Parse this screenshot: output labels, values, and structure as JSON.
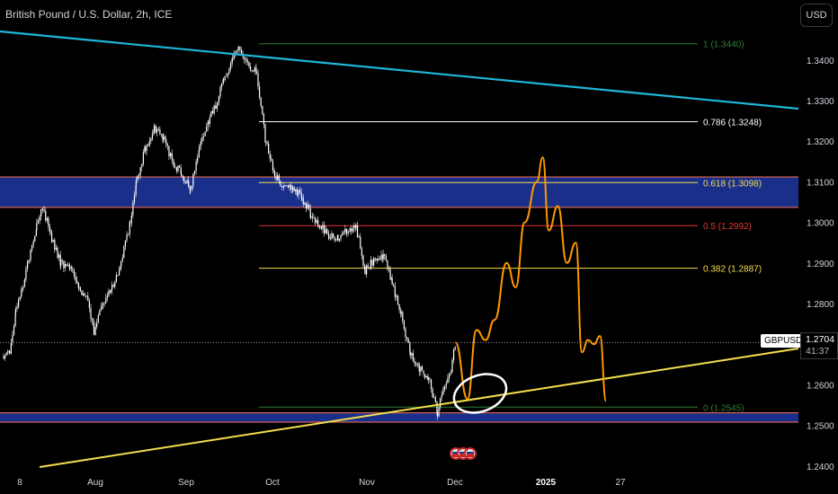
{
  "header": {
    "title": "British Pound / U.S. Dollar, 2h, ICE"
  },
  "toolbar": {
    "currency": "USD"
  },
  "last_price": {
    "symbol": "GBPUSD",
    "price": "1.2704",
    "countdown": "41:37"
  },
  "colors": {
    "background": "#000000",
    "candle": "#ffffff",
    "blue_trendline": "#1fb6d8",
    "yellow_trendline": "#f5df4d",
    "projection": "#ff9800",
    "zone_fill": "#1a2f8a",
    "zone_border": "#ff6f4f"
  },
  "chart_data": {
    "type": "candlestick",
    "title": "British Pound / U.S. Dollar, 2h, ICE",
    "y_axis": {
      "ticks": [
        "1.3400",
        "1.3300",
        "1.3200",
        "1.3100",
        "1.3000",
        "1.2900",
        "1.2800",
        "1.2600",
        "1.2500",
        "1.2400"
      ],
      "range": [
        1.2373,
        1.349
      ]
    },
    "x_axis": {
      "ticks": [
        "8",
        "Aug",
        "Sep",
        "Oct",
        "Nov",
        "Dec",
        "2025",
        "27"
      ]
    },
    "fibonacci": [
      {
        "level": "1",
        "price": 1.344,
        "label": "1 (1.3440)",
        "color": "#2e7d32"
      },
      {
        "level": "0.786",
        "price": 1.3248,
        "label": "0.786 (1.3248)",
        "color": "#ffffff"
      },
      {
        "level": "0.618",
        "price": 1.3098,
        "label": "0.618 (1.3098)",
        "color": "#f5df4d"
      },
      {
        "level": "0.5",
        "price": 1.2992,
        "label": "0.5 (1.2992)",
        "color": "#e53935"
      },
      {
        "level": "0.382",
        "price": 1.2887,
        "label": "0.382 (1.2887)",
        "color": "#f5df4d"
      },
      {
        "level": "0",
        "price": 1.2545,
        "label": "0 (1.2545)",
        "color": "#2e7d32"
      }
    ],
    "zones": [
      {
        "from": 1.3037,
        "to": 1.3112
      },
      {
        "from": 1.2508,
        "to": 1.2531
      }
    ],
    "last_price": 1.2704,
    "price_path": [
      [
        "Jul 1",
        1.267
      ],
      [
        "Jul 3",
        1.268
      ],
      [
        "Jul 5",
        1.278
      ],
      [
        "Jul 7",
        1.283
      ],
      [
        "Jul 9",
        1.29
      ],
      [
        "Jul 12",
        1.299
      ],
      [
        "Jul 14",
        1.304
      ],
      [
        "Jul 17",
        1.296
      ],
      [
        "Jul 20",
        1.29
      ],
      [
        "Jul 23",
        1.289
      ],
      [
        "Jul 26",
        1.284
      ],
      [
        "Jul 29",
        1.281
      ],
      [
        "Jul 31",
        1.273
      ],
      [
        "Aug 3",
        1.28
      ],
      [
        "Aug 6",
        1.284
      ],
      [
        "Aug 9",
        1.29
      ],
      [
        "Aug 12",
        1.3
      ],
      [
        "Aug 14",
        1.31
      ],
      [
        "Aug 17",
        1.318
      ],
      [
        "Aug 20",
        1.323
      ],
      [
        "Aug 23",
        1.321
      ],
      [
        "Aug 26",
        1.315
      ],
      [
        "Aug 29",
        1.312
      ],
      [
        "Sep 1",
        1.308
      ],
      [
        "Sep 4",
        1.318
      ],
      [
        "Sep 7",
        1.325
      ],
      [
        "Sep 10",
        1.33
      ],
      [
        "Sep 12",
        1.335
      ],
      [
        "Sep 15",
        1.34
      ],
      [
        "Sep 17",
        1.343
      ],
      [
        "Sep 20",
        1.339
      ],
      [
        "Sep 23",
        1.337
      ],
      [
        "Sep 26",
        1.32
      ],
      [
        "Sep 29",
        1.312
      ],
      [
        "Oct 2",
        1.308
      ],
      [
        "Oct 5",
        1.309
      ],
      [
        "Oct 8",
        1.306
      ],
      [
        "Oct 11",
        1.302
      ],
      [
        "Oct 14",
        1.299
      ],
      [
        "Oct 17",
        1.297
      ],
      [
        "Oct 20",
        1.296
      ],
      [
        "Oct 23",
        1.298
      ],
      [
        "Oct 26",
        1.299
      ],
      [
        "Oct 29",
        1.288
      ],
      [
        "Nov 1",
        1.291
      ],
      [
        "Nov 4",
        1.292
      ],
      [
        "Nov 7",
        1.285
      ],
      [
        "Nov 10",
        1.277
      ],
      [
        "Nov 13",
        1.268
      ],
      [
        "Nov 16",
        1.264
      ],
      [
        "Nov 19",
        1.262
      ],
      [
        "Nov 22",
        1.253
      ],
      [
        "Nov 24",
        1.259
      ],
      [
        "Nov 26",
        1.262
      ],
      [
        "Nov 28",
        1.2704
      ]
    ],
    "projection_path": [
      [
        "Nov 28",
        1.2704
      ],
      [
        "Dec 2",
        1.2565
      ],
      [
        "Dec 5",
        1.2735
      ],
      [
        "Dec 8",
        1.271
      ],
      [
        "Dec 11",
        1.276
      ],
      [
        "Dec 15",
        1.29
      ],
      [
        "Dec 18",
        1.284
      ],
      [
        "Dec 21",
        1.3
      ],
      [
        "Dec 25",
        1.31
      ],
      [
        "Dec 27",
        1.316
      ],
      [
        "Dec 29",
        1.298
      ],
      [
        "Jan 1",
        1.304
      ],
      [
        "Jan 4",
        1.29
      ],
      [
        "Jan 7",
        1.295
      ],
      [
        "Jan 9",
        1.268
      ],
      [
        "Jan 11",
        1.271
      ],
      [
        "Jan 13",
        1.27
      ],
      [
        "Jan 15",
        1.272
      ],
      [
        "Jan 17",
        1.256
      ]
    ]
  }
}
